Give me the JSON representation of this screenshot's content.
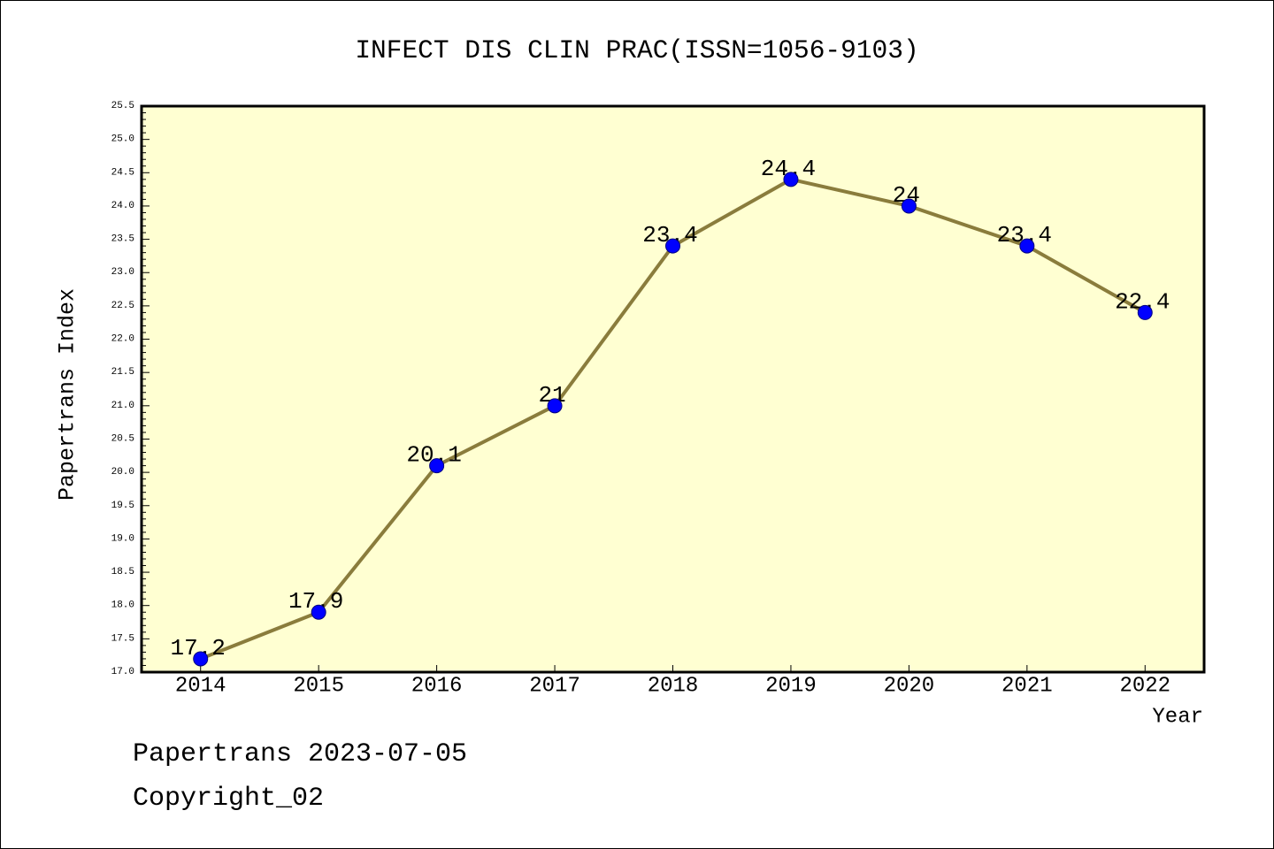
{
  "chart_data": {
    "type": "line",
    "title": "INFECT DIS CLIN PRAC(ISSN=1056-9103)",
    "xlabel": "Year",
    "ylabel": "Papertrans Index",
    "x": [
      2014,
      2015,
      2016,
      2017,
      2018,
      2019,
      2020,
      2021,
      2022
    ],
    "xticks": [
      "2014",
      "2015",
      "2016",
      "2017",
      "2018",
      "2019",
      "2020",
      "2021",
      "2022"
    ],
    "series": [
      {
        "values": [
          17.2,
          17.9,
          20.1,
          21,
          23.4,
          24.4,
          24,
          23.4,
          22.4
        ],
        "labels": [
          "17.2",
          "17.9",
          "20.1",
          "21",
          "23.4",
          "24.4",
          "24",
          "23.4",
          "22.4"
        ],
        "marker": "circle"
      }
    ],
    "xlim": [
      2013.5,
      2022.5
    ],
    "ylim": [
      17.0,
      25.5
    ],
    "yticks": [
      "17.0",
      "17.5",
      "18.0",
      "18.5",
      "19.0",
      "19.5",
      "20.0",
      "20.5",
      "21.0",
      "21.5",
      "22.0",
      "22.5",
      "23.0",
      "23.5",
      "24.0",
      "24.5",
      "25.0",
      "25.5"
    ],
    "y_minor_step": 0.1,
    "grid": false,
    "legend": "none"
  },
  "colors": {
    "page_background": "#FFFFFF",
    "plot_background": "#FFFFD2",
    "axis": "#000000",
    "line": "#8A7C3C",
    "marker": "#0000FF",
    "marker_edge": "#000080"
  },
  "footer": {
    "date_line": "Papertrans 2023-07-05",
    "copyright": "Copyright_02"
  }
}
